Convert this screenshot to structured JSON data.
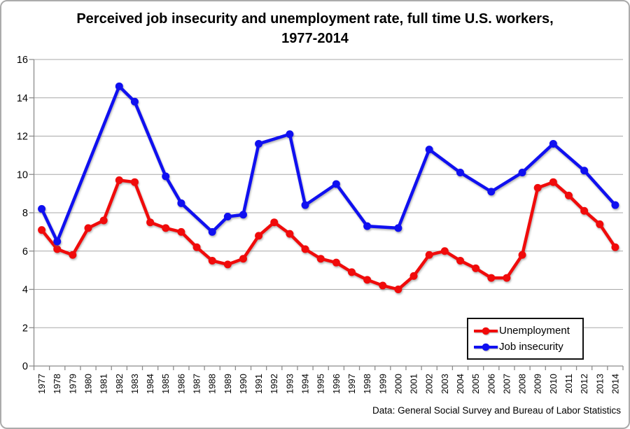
{
  "title": "Perceived job insecurity and unemployment rate, full time U.S. workers, 1977-2014",
  "footer": "Data: General Social Survey and Bureau of Labor Statistics",
  "chart_data": {
    "type": "line",
    "title": "Perceived job insecurity and unemployment rate, full time U.S. workers, 1977-2014",
    "x": [
      1977,
      1978,
      1979,
      1980,
      1981,
      1982,
      1983,
      1984,
      1985,
      1986,
      1987,
      1988,
      1989,
      1990,
      1991,
      1992,
      1993,
      1994,
      1995,
      1996,
      1997,
      1998,
      1999,
      2000,
      2001,
      2002,
      2003,
      2004,
      2005,
      2006,
      2007,
      2008,
      2009,
      2010,
      2011,
      2012,
      2013,
      2014
    ],
    "series": [
      {
        "name": "Unemployment",
        "color": "#f00b0b",
        "values": [
          7.1,
          6.1,
          5.8,
          7.2,
          7.6,
          9.7,
          9.6,
          7.5,
          7.2,
          7.0,
          6.2,
          5.5,
          5.3,
          5.6,
          6.8,
          7.5,
          6.9,
          6.1,
          5.6,
          5.4,
          4.9,
          4.5,
          4.2,
          4.0,
          4.7,
          5.8,
          6.0,
          5.5,
          5.1,
          4.6,
          4.6,
          5.8,
          9.3,
          9.6,
          8.9,
          8.1,
          7.4,
          6.2
        ]
      },
      {
        "name": "Job insecurity",
        "color": "#1010f0",
        "values": [
          8.2,
          6.5,
          null,
          null,
          null,
          14.6,
          13.8,
          null,
          9.9,
          8.5,
          null,
          7.0,
          7.8,
          7.9,
          11.6,
          null,
          12.1,
          8.4,
          null,
          9.5,
          null,
          7.3,
          null,
          7.2,
          null,
          11.3,
          null,
          10.1,
          null,
          9.1,
          null,
          10.1,
          null,
          11.6,
          null,
          10.2,
          null,
          8.4
        ]
      }
    ],
    "ylim": [
      0,
      16
    ],
    "yticks": [
      0,
      2,
      4,
      6,
      8,
      10,
      12,
      14,
      16
    ],
    "grid": true,
    "grid_color": "#a8a8a8",
    "axis_color": "#8c8c8c",
    "legend_position": "bottom-right",
    "source_note": "Data: General Social Survey and Bureau of Labor Statistics"
  }
}
